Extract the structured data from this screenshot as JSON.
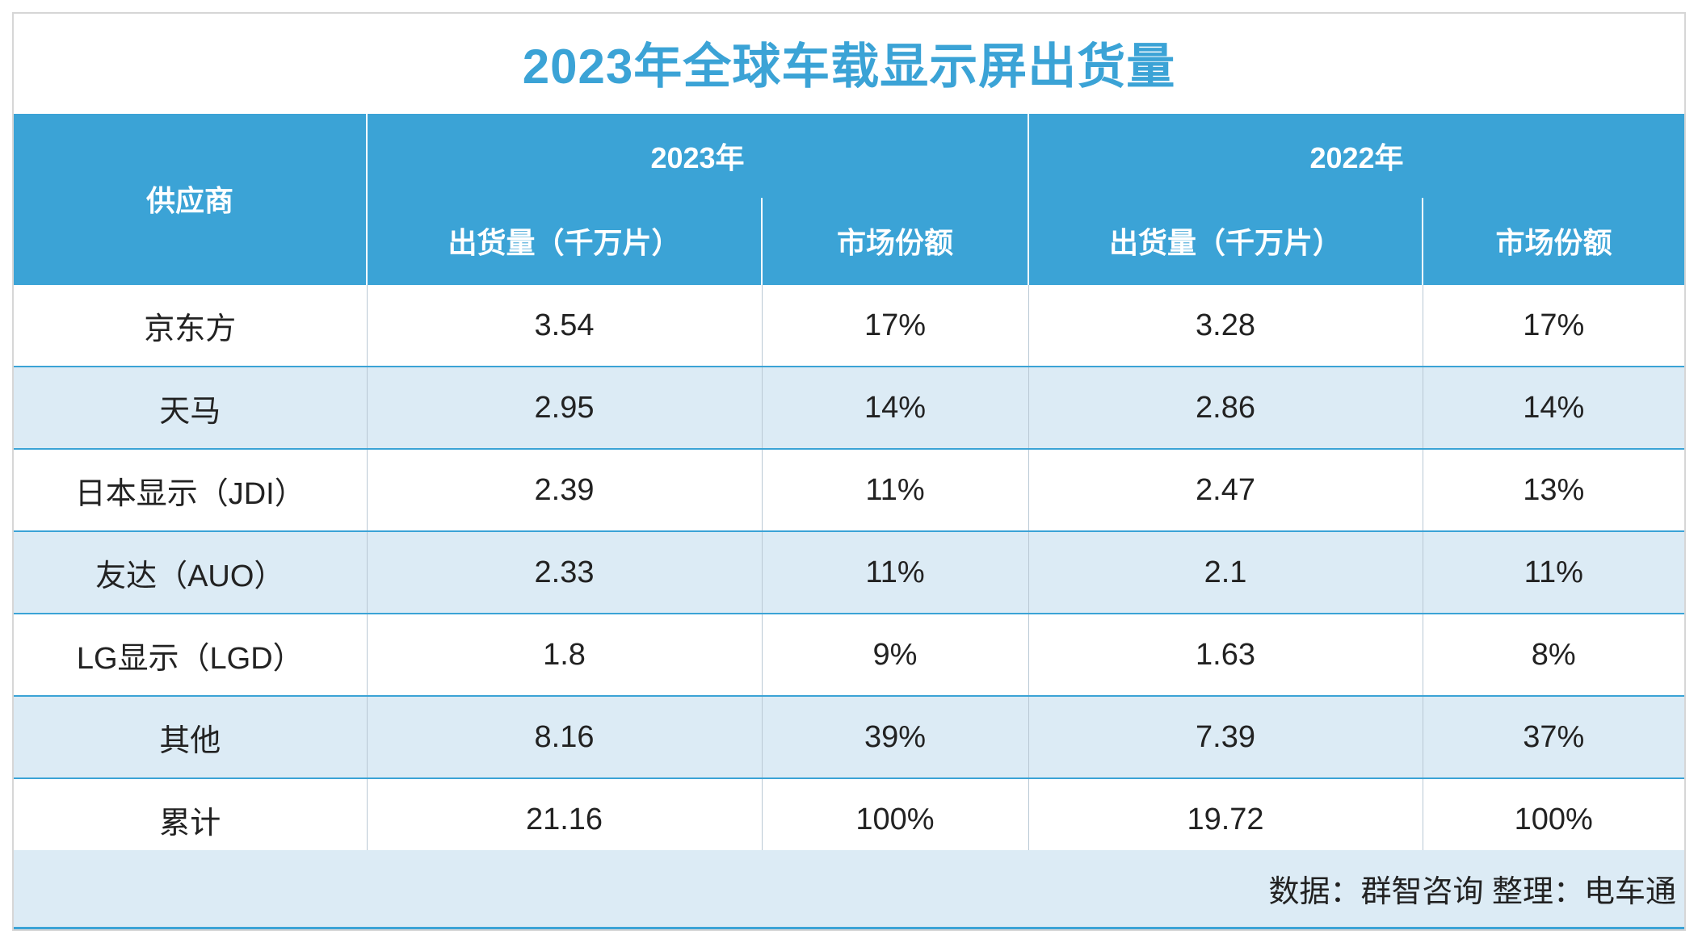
{
  "title": "2023年全球车载显示屏出货量",
  "colors": {
    "accent": "#3ba3d6",
    "row_alt": "#dcebf5"
  },
  "chart_data": {
    "type": "table",
    "title": "2023年全球车载显示屏出货量",
    "header": {
      "supplier": "供应商",
      "year_2023": "2023年",
      "year_2022": "2022年",
      "shipment": "出货量（千万片）",
      "share": "市场份额"
    },
    "rows": [
      {
        "supplier": "京东方",
        "y2023_shipment": "3.54",
        "y2023_share": "17%",
        "y2022_shipment": "3.28",
        "y2022_share": "17%"
      },
      {
        "supplier": "天马",
        "y2023_shipment": "2.95",
        "y2023_share": "14%",
        "y2022_shipment": "2.86",
        "y2022_share": "14%"
      },
      {
        "supplier": "日本显示（JDI）",
        "y2023_shipment": "2.39",
        "y2023_share": "11%",
        "y2022_shipment": "2.47",
        "y2022_share": "13%"
      },
      {
        "supplier": "友达（AUO）",
        "y2023_shipment": "2.33",
        "y2023_share": "11%",
        "y2022_shipment": "2.1",
        "y2022_share": "11%"
      },
      {
        "supplier": "LG显示（LGD）",
        "y2023_shipment": "1.8",
        "y2023_share": "9%",
        "y2022_shipment": "1.63",
        "y2022_share": "8%"
      },
      {
        "supplier": "其他",
        "y2023_shipment": "8.16",
        "y2023_share": "39%",
        "y2022_shipment": "7.39",
        "y2022_share": "37%"
      },
      {
        "supplier": "累计",
        "y2023_shipment": "21.16",
        "y2023_share": "100%",
        "y2022_shipment": "19.72",
        "y2022_share": "100%"
      }
    ],
    "source_note": "数据：群智咨询 整理：电车通"
  }
}
